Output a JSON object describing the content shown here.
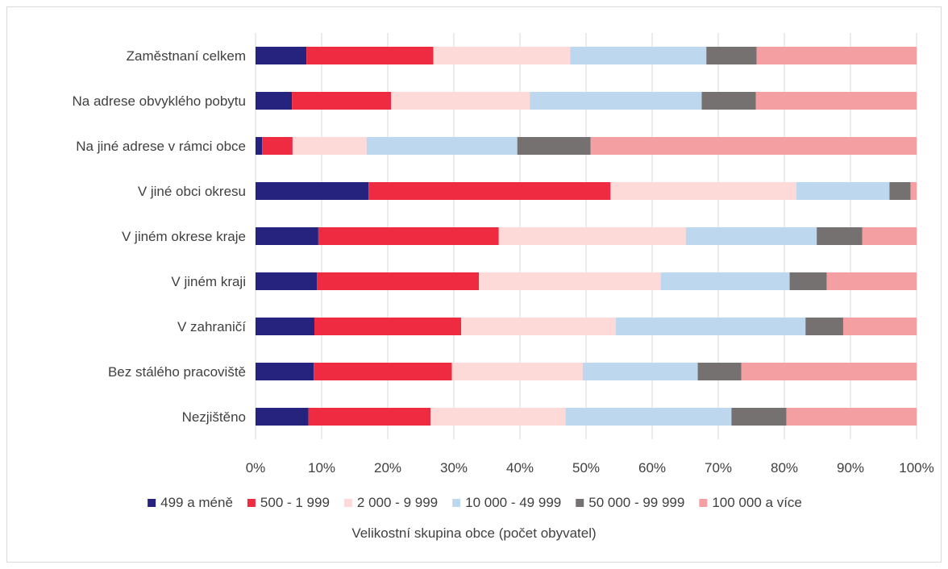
{
  "chart_data": {
    "type": "bar",
    "orientation": "horizontal",
    "stacked": "percent",
    "categories": [
      "Zaměstnaní celkem",
      "Na adrese obvyklého pobytu",
      "Na jiné adrese v rámci obce",
      "V jiné obci okresu",
      "V jiném okrese kraje",
      "V jiném kraji",
      "V zahraničí",
      "Bez stálého pracoviště",
      "Nezjištěno"
    ],
    "series": [
      {
        "name": "499 a méně",
        "color": "#26237e",
        "values": [
          7.7,
          5.5,
          1.0,
          17.1,
          9.5,
          9.3,
          8.9,
          8.8,
          8.0
        ]
      },
      {
        "name": "500 - 1 999",
        "color": "#ee2b41",
        "values": [
          19.2,
          15.0,
          4.6,
          36.6,
          27.3,
          24.5,
          22.2,
          20.9,
          18.5
        ]
      },
      {
        "name": "2 000 - 9 999",
        "color": "#fdd9d8",
        "values": [
          20.7,
          21.0,
          11.2,
          28.1,
          28.3,
          27.5,
          23.4,
          19.8,
          20.4
        ]
      },
      {
        "name": "10 000 - 49 999",
        "color": "#bdd7ee",
        "values": [
          20.6,
          26.0,
          22.8,
          14.1,
          19.8,
          19.5,
          28.7,
          17.4,
          25.1
        ]
      },
      {
        "name": "50 000 - 99 999",
        "color": "#767171",
        "values": [
          7.6,
          8.2,
          11.1,
          3.2,
          6.9,
          5.6,
          5.7,
          6.6,
          8.3
        ]
      },
      {
        "name": "100 000 a více",
        "color": "#f4a0a3",
        "values": [
          24.2,
          24.3,
          49.3,
          0.9,
          8.2,
          13.6,
          11.1,
          26.5,
          19.7
        ]
      }
    ],
    "x_ticks": [
      "0%",
      "10%",
      "20%",
      "30%",
      "40%",
      "50%",
      "60%",
      "70%",
      "80%",
      "90%",
      "100%"
    ],
    "xlim": [
      0,
      100
    ],
    "xlabel": "Velikostní skupina obce (počet obyvatel)",
    "grid": "vertical",
    "legend_position": "bottom"
  }
}
